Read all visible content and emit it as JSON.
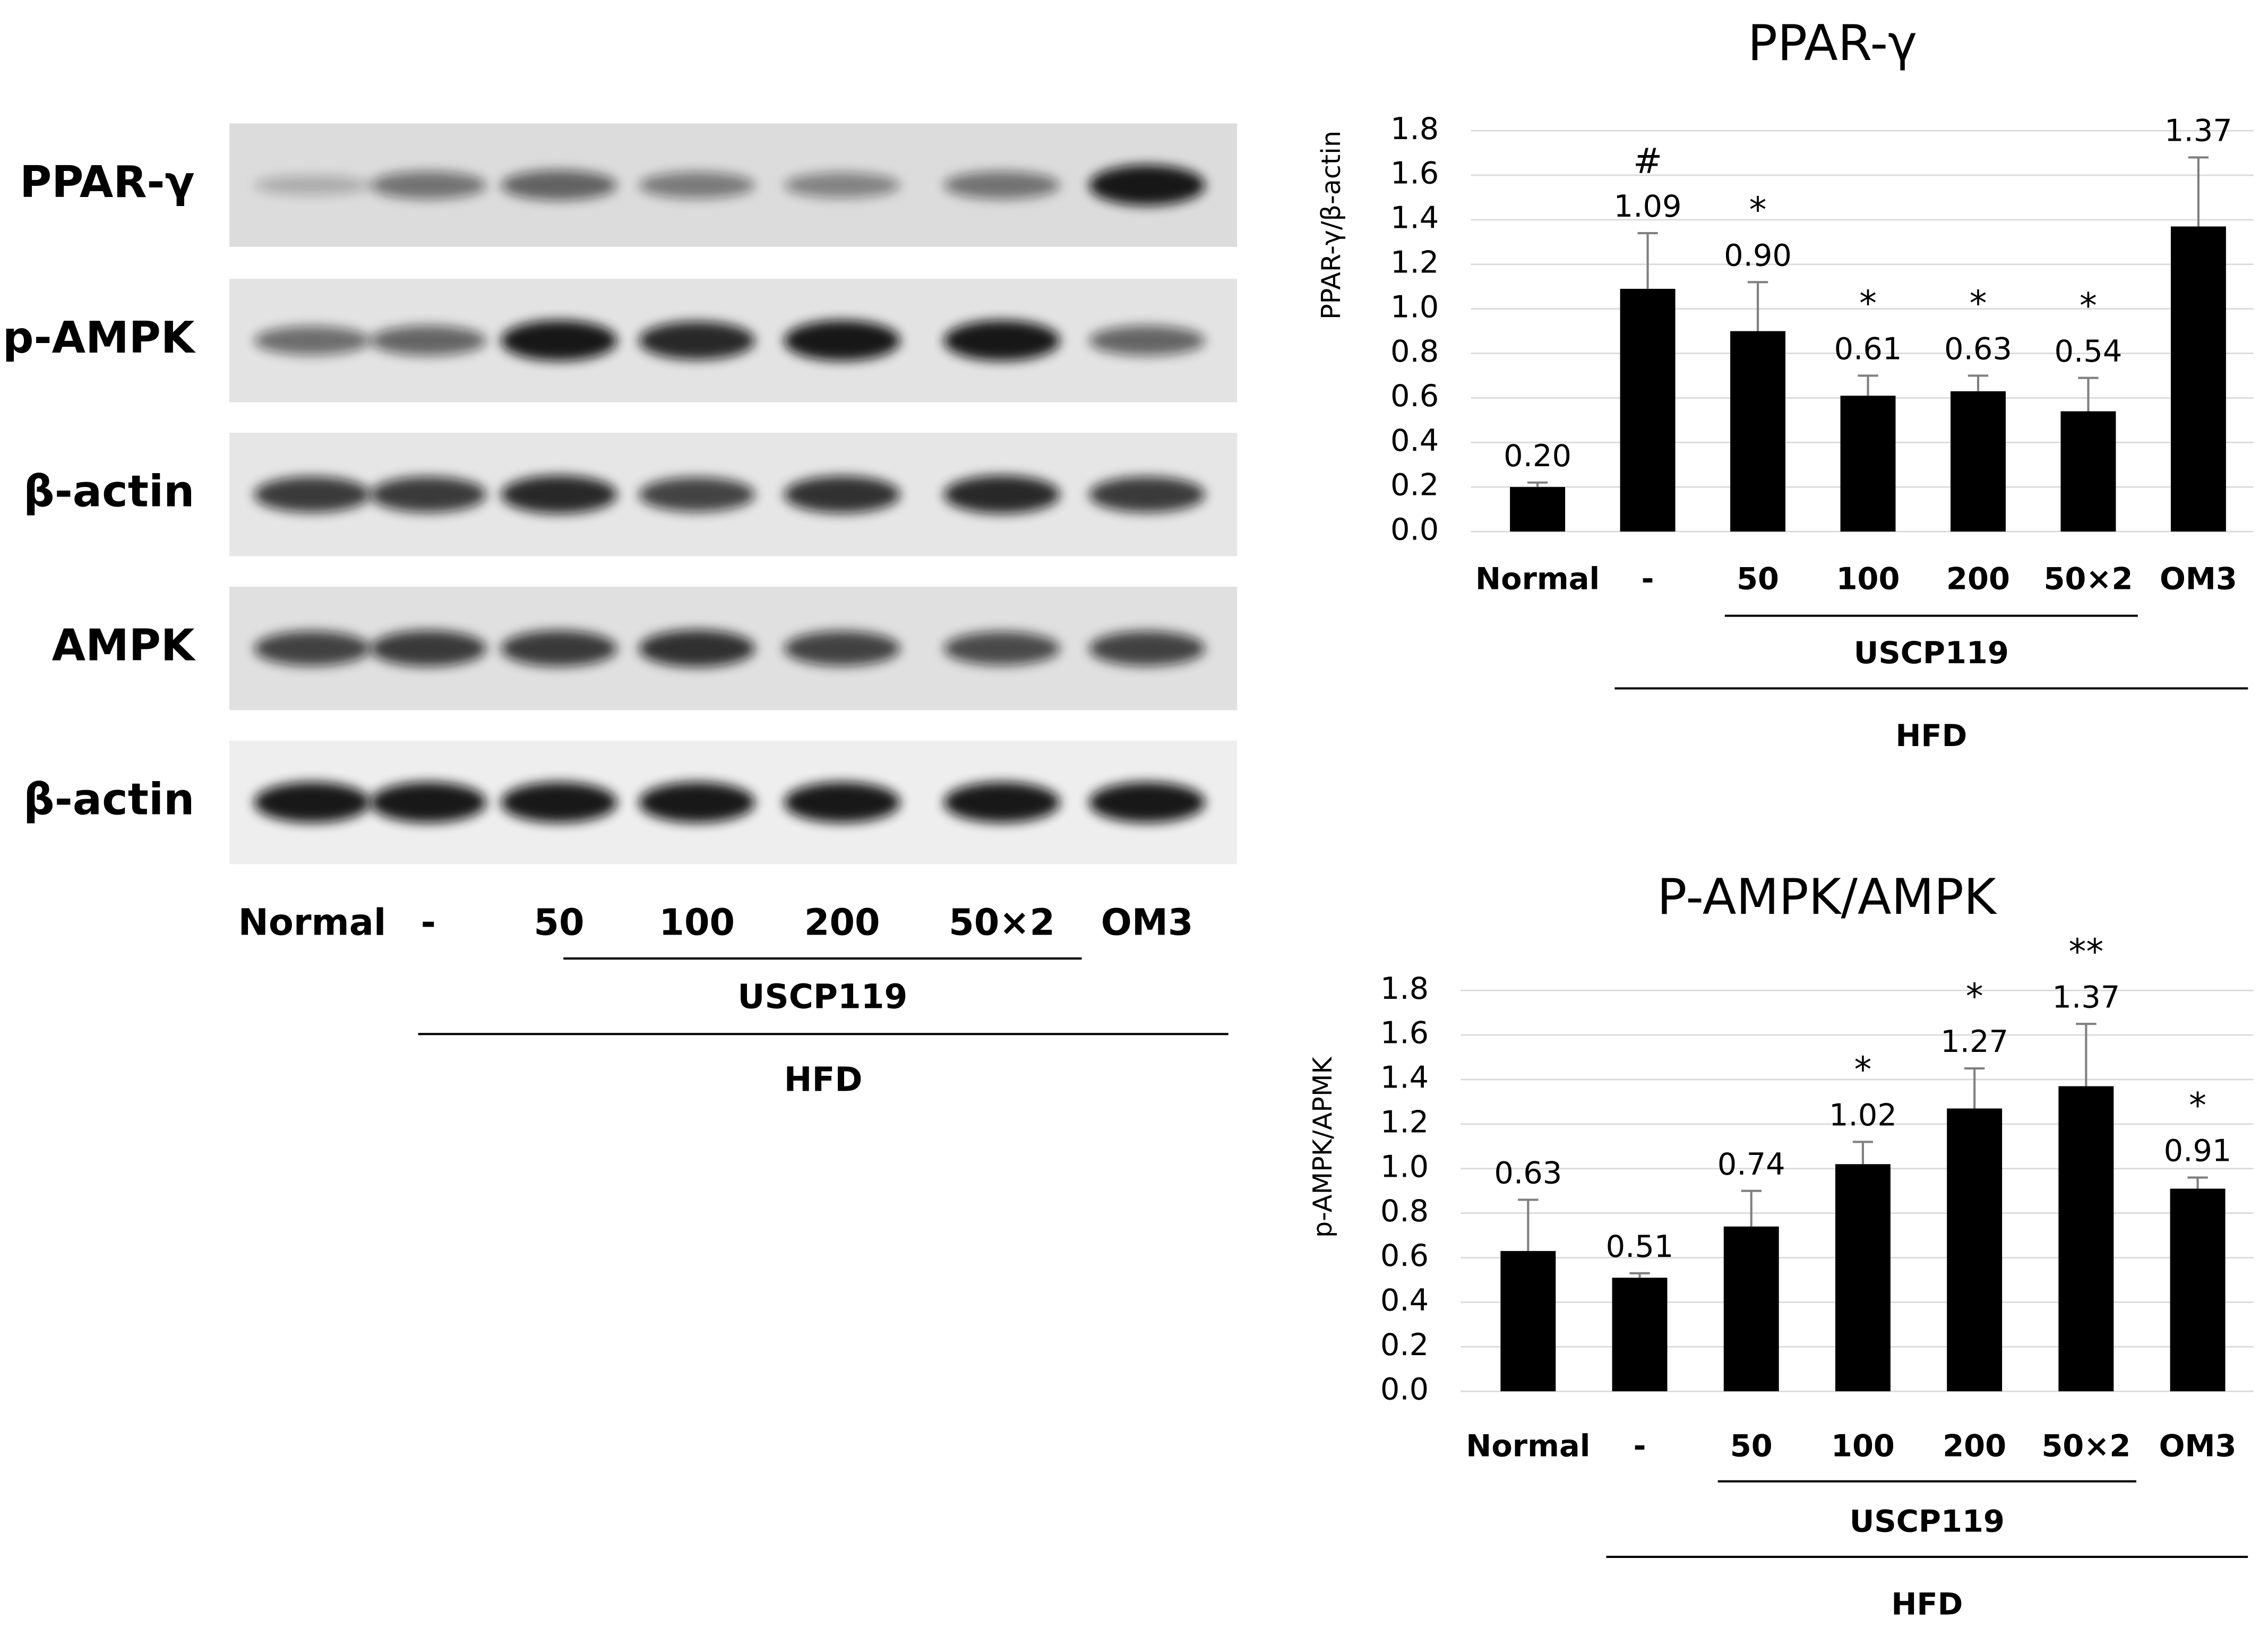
{
  "blot": {
    "rows": [
      "PPAR-γ",
      "p-AMPK",
      "β-actin",
      "AMPK",
      "β-actin"
    ],
    "lanes": [
      "Normal",
      "-",
      "50",
      "100",
      "200",
      "50×2",
      "OM3"
    ],
    "groups": [
      {
        "label": "USCP119",
        "span": [
          2,
          5
        ]
      },
      {
        "label": "HFD",
        "span": [
          1,
          6
        ]
      }
    ]
  },
  "chart_data": [
    {
      "type": "bar",
      "title": "PPAR-γ",
      "y_label": "PPAR-γ/β-actin",
      "categories": [
        "Normal",
        "-",
        "50",
        "100",
        "200",
        "50×2",
        "OM3"
      ],
      "values": [
        0.2,
        1.09,
        0.9,
        0.61,
        0.63,
        0.54,
        1.37
      ],
      "value_labels": [
        "0.20",
        "1.09",
        "0.90",
        "0.61",
        "0.63",
        "0.54",
        "1.37"
      ],
      "errors": [
        0.02,
        0.25,
        0.22,
        0.09,
        0.07,
        0.15,
        0.31
      ],
      "annotations": [
        null,
        "#",
        "*",
        "*",
        "*",
        "*",
        null
      ],
      "groups": [
        {
          "label": "USCP119",
          "span": [
            2,
            5
          ]
        },
        {
          "label": "HFD",
          "span": [
            1,
            6
          ]
        }
      ],
      "color": "#000000",
      "grid": true,
      "ylim": [
        0,
        1.8
      ],
      "yticks": [
        {
          "value": 0,
          "label": "0.0"
        },
        {
          "value": 0.2,
          "label": "0.2"
        },
        {
          "value": 0.4,
          "label": "0.4"
        },
        {
          "value": 0.6,
          "label": "0.6"
        },
        {
          "value": 0.8,
          "label": "0.8"
        },
        {
          "value": 1,
          "label": "1.0"
        },
        {
          "value": 1.2,
          "label": "1.2"
        },
        {
          "value": 1.4,
          "label": "1.4"
        },
        {
          "value": 1.6,
          "label": "1.6"
        },
        {
          "value": 1.8,
          "label": "1.8"
        }
      ]
    },
    {
      "type": "bar",
      "title": "P-AMPK/AMPK",
      "y_label": "p-AMPK/APMK",
      "categories": [
        "Normal",
        "-",
        "50",
        "100",
        "200",
        "50×2",
        "OM3"
      ],
      "values": [
        0.63,
        0.51,
        0.74,
        1.02,
        1.27,
        1.37,
        0.91
      ],
      "value_labels": [
        "0.63",
        "0.51",
        "0.74",
        "1.02",
        "1.27",
        "1.37",
        "0.91"
      ],
      "errors": [
        0.23,
        0.02,
        0.16,
        0.1,
        0.18,
        0.28,
        0.05
      ],
      "annotations": [
        null,
        null,
        null,
        "*",
        "*",
        "**",
        "*"
      ],
      "groups": [
        {
          "label": "USCP119",
          "span": [
            2,
            5
          ]
        },
        {
          "label": "HFD",
          "span": [
            1,
            6
          ]
        }
      ],
      "color": "#000000",
      "grid": true,
      "ylim": [
        0,
        1.8
      ],
      "yticks": [
        {
          "value": 0,
          "label": "0.0"
        },
        {
          "value": 0.2,
          "label": "0.2"
        },
        {
          "value": 0.4,
          "label": "0.4"
        },
        {
          "value": 0.6,
          "label": "0.6"
        },
        {
          "value": 0.8,
          "label": "0.8"
        },
        {
          "value": 1,
          "label": "1.0"
        },
        {
          "value": 1.2,
          "label": "1.2"
        },
        {
          "value": 1.4,
          "label": "1.4"
        },
        {
          "value": 1.6,
          "label": "1.6"
        },
        {
          "value": 1.8,
          "label": "1.8"
        }
      ]
    }
  ]
}
